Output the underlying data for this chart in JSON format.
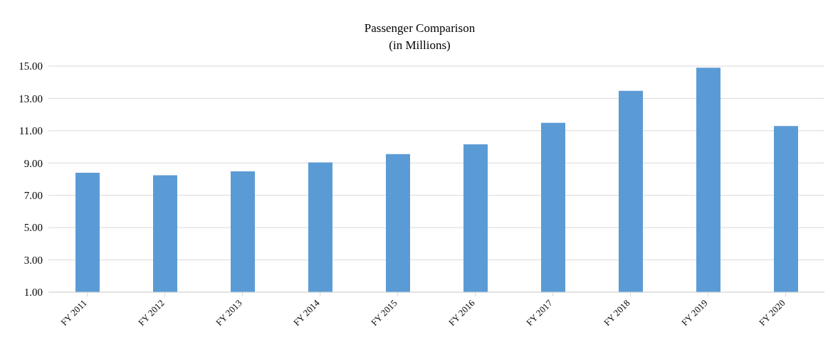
{
  "chart_data": {
    "type": "bar",
    "title": "Passenger Comparison",
    "subtitle": "(in Millions)",
    "categories": [
      "FY 2011",
      "FY 2012",
      "FY 2013",
      "FY 2014",
      "FY 2015",
      "FY 2016",
      "FY 2017",
      "FY 2018",
      "FY 2019",
      "FY 2020"
    ],
    "values": [
      8.4,
      8.24,
      8.48,
      9.04,
      9.55,
      10.16,
      11.49,
      13.47,
      14.9,
      11.29
    ],
    "color": "#5b9bd5",
    "ylim": [
      1,
      15
    ],
    "yticks": [
      {
        "value": 1,
        "label": "1.00"
      },
      {
        "value": 3,
        "label": "3.00"
      },
      {
        "value": 5,
        "label": "5.00"
      },
      {
        "value": 7,
        "label": "7.00"
      },
      {
        "value": 9,
        "label": "9.00"
      },
      {
        "value": 11,
        "label": "11.00"
      },
      {
        "value": 13,
        "label": "13.00"
      },
      {
        "value": 15,
        "label": "15.00"
      }
    ],
    "grid": "y",
    "legend": false
  }
}
